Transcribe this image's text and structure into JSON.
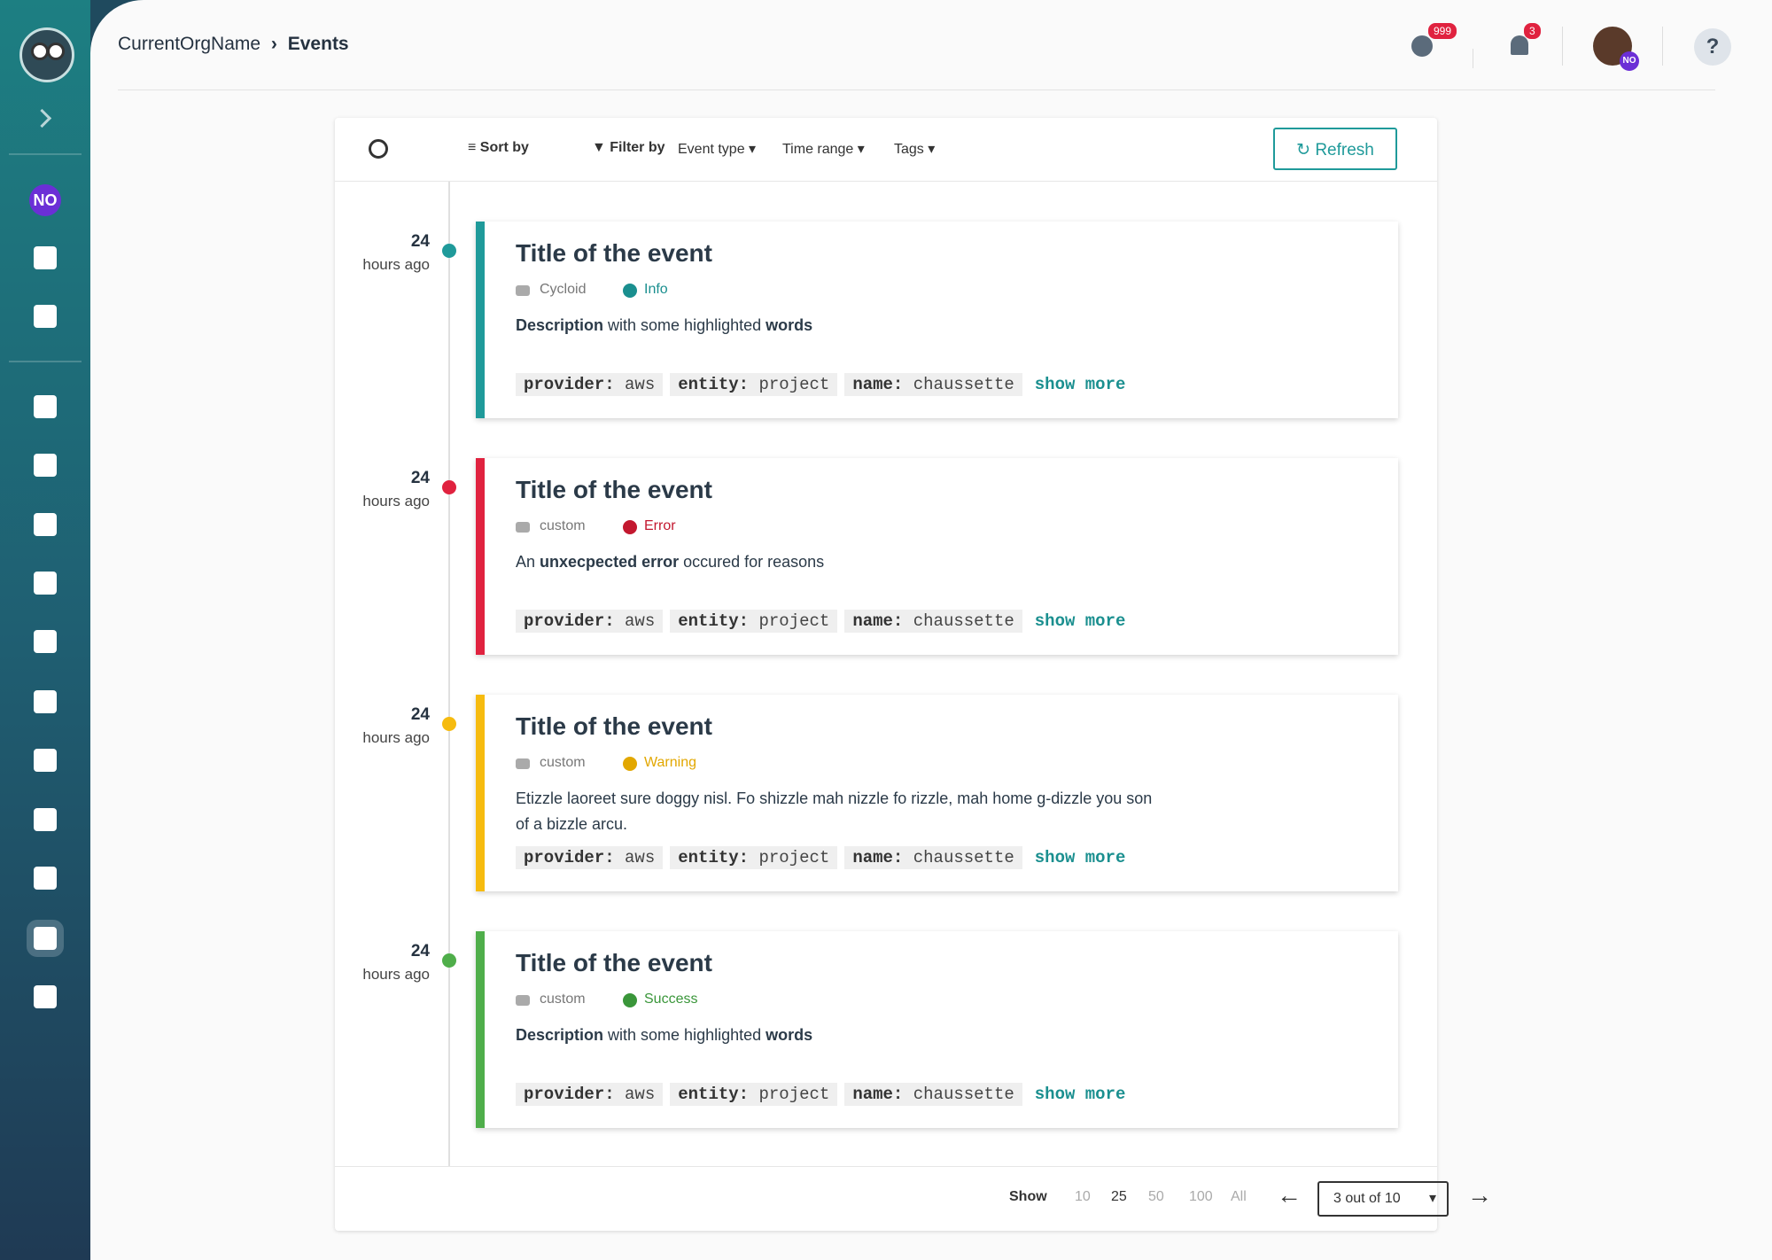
{
  "sidebar": {
    "org_initials": "NO"
  },
  "breadcrumb": {
    "org": "CurrentOrgName",
    "page": "Events"
  },
  "header": {
    "alerts_badge": "999",
    "notifications_badge": "3",
    "avatar_initials": "NO",
    "help": "?"
  },
  "toolbar": {
    "sort": "Sort by",
    "filter": "Filter by",
    "event_type": "Event type",
    "time_range": "Time range",
    "tags": "Tags",
    "refresh": "Refresh"
  },
  "events": [
    {
      "time": "24",
      "time_unit": "hours ago",
      "title": "Title of the event",
      "source": "Cycloid",
      "severity": "Info",
      "color": "#1f9a9a",
      "severity_color": "#1a8f8f",
      "description": [
        {
          "text": "Description",
          "bold": true
        },
        {
          "text": " with some highlighted "
        },
        {
          "text": "words",
          "bold": true
        }
      ],
      "tags": [
        {
          "key": "provider:",
          "value": "aws"
        },
        {
          "key": "entity:",
          "value": "project"
        },
        {
          "key": "name:",
          "value": "chaussette"
        }
      ],
      "show_more": "show more"
    },
    {
      "time": "24",
      "time_unit": "hours ago",
      "title": "Title of the event",
      "source": "custom",
      "severity": "Error",
      "color": "#e0223f",
      "severity_color": "#c3182f",
      "description": [
        {
          "text": "An "
        },
        {
          "text": "unxecpected error",
          "bold": true
        },
        {
          "text": " occured for reasons"
        }
      ],
      "tags": [
        {
          "key": "provider:",
          "value": "aws"
        },
        {
          "key": "entity:",
          "value": "project"
        },
        {
          "key": "name:",
          "value": "chaussette"
        }
      ],
      "show_more": "show more"
    },
    {
      "time": "24",
      "time_unit": "hours ago",
      "title": "Title of the event",
      "source": "custom",
      "severity": "Warning",
      "color": "#f6bb0f",
      "severity_color": "#e2a700",
      "description": [
        {
          "text": "Etizzle laoreet sure doggy nisl. Fo shizzle mah nizzle fo rizzle, mah home g-dizzle you son of a bizzle arcu."
        }
      ],
      "tags": [
        {
          "key": "provider:",
          "value": "aws"
        },
        {
          "key": "entity:",
          "value": "project"
        },
        {
          "key": "name:",
          "value": "chaussette"
        }
      ],
      "show_more": "show more"
    },
    {
      "time": "24",
      "time_unit": "hours ago",
      "title": "Title of the event",
      "source": "custom",
      "severity": "Success",
      "color": "#4fae4a",
      "severity_color": "#3a963a",
      "description": [
        {
          "text": "Description",
          "bold": true
        },
        {
          "text": " with some highlighted "
        },
        {
          "text": "words",
          "bold": true
        }
      ],
      "tags": [
        {
          "key": "provider:",
          "value": "aws"
        },
        {
          "key": "entity:",
          "value": "project"
        },
        {
          "key": "name:",
          "value": "chaussette"
        }
      ],
      "show_more": "show more"
    }
  ],
  "pagination": {
    "show": "Show",
    "sizes": [
      {
        "label": "10"
      },
      {
        "label": "25",
        "active": true
      },
      {
        "label": "50"
      },
      {
        "label": "100"
      },
      {
        "label": "All"
      }
    ],
    "page": "3 out of 10"
  }
}
